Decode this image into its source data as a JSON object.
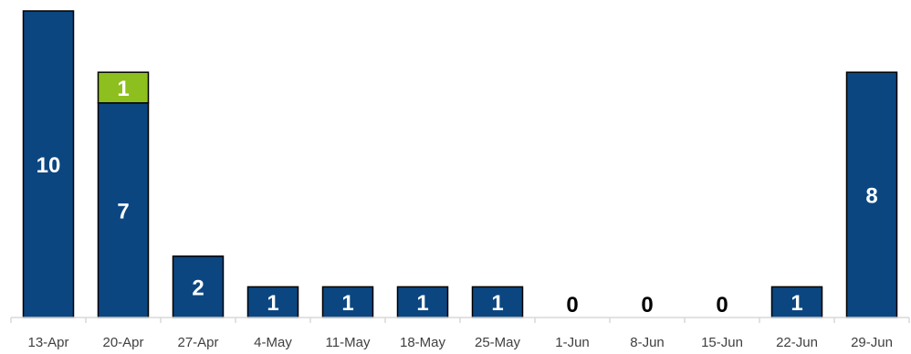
{
  "chart_data": {
    "type": "bar",
    "stacked": true,
    "categories": [
      "13-Apr",
      "20-Apr",
      "27-Apr",
      "4-May",
      "11-May",
      "18-May",
      "25-May",
      "1-Jun",
      "8-Jun",
      "15-Jun",
      "22-Jun",
      "29-Jun"
    ],
    "series": [
      {
        "values": [
          10,
          7,
          2,
          1,
          1,
          1,
          1,
          0,
          0,
          0,
          1,
          8
        ],
        "color": "#0B4680"
      },
      {
        "values": [
          0,
          1,
          0,
          0,
          0,
          0,
          0,
          0,
          0,
          0,
          0,
          0
        ],
        "color": "#8DBF1E"
      }
    ],
    "title": "",
    "xlabel": "",
    "ylabel": "",
    "ylim": [
      0,
      10
    ],
    "grid": false,
    "legend": "none"
  }
}
